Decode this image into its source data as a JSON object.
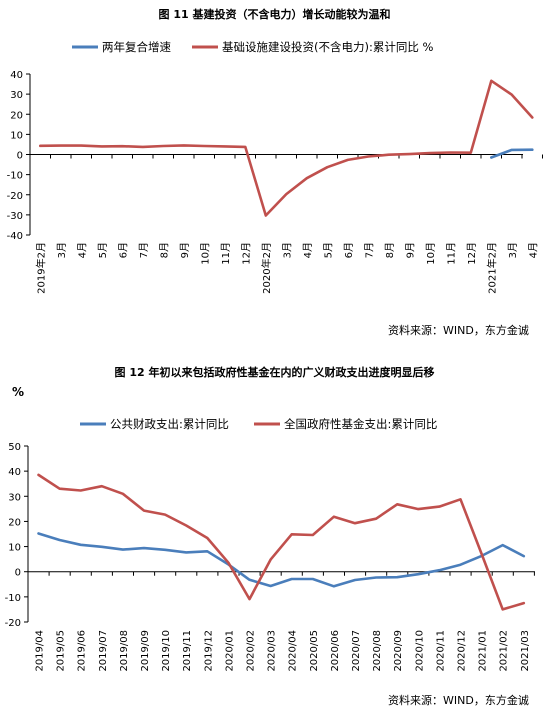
{
  "chart_data": [
    {
      "type": "line",
      "title": "图 11    基建投资（不含电力）增长动能较为温和",
      "xlabel": "",
      "ylabel": "",
      "ylim": [
        -40,
        40
      ],
      "yticks": [
        -40,
        -30,
        -20,
        -10,
        0,
        10,
        20,
        30,
        40
      ],
      "grid": false,
      "legend_position": "top",
      "categories": [
        "2019年2月",
        "3月",
        "4月",
        "5月",
        "6月",
        "7月",
        "8月",
        "9月",
        "10月",
        "11月",
        "12月",
        "2020年2月",
        "3月",
        "4月",
        "5月",
        "6月",
        "7月",
        "8月",
        "9月",
        "10月",
        "11月",
        "12月",
        "2021年2月",
        "3月",
        "4月"
      ],
      "series": [
        {
          "name": "两年复合增速",
          "color": "#4a7ebb",
          "values": [
            null,
            null,
            null,
            null,
            null,
            null,
            null,
            null,
            null,
            null,
            null,
            null,
            null,
            null,
            null,
            null,
            null,
            null,
            null,
            null,
            null,
            null,
            -1.5,
            2.3,
            2.4
          ]
        },
        {
          "name": "基础设施建设投资(不含电力):累计同比 %",
          "color": "#c0504d",
          "values": [
            4.3,
            4.4,
            4.4,
            4.0,
            4.1,
            3.8,
            4.2,
            4.5,
            4.2,
            4.0,
            3.8,
            -30.3,
            -19.7,
            -11.8,
            -6.3,
            -2.7,
            -1.0,
            -0.1,
            0.2,
            0.7,
            1.0,
            0.9,
            36.6,
            29.7,
            18.4
          ]
        }
      ],
      "source": "资料来源：WIND，东方金诚"
    },
    {
      "type": "line",
      "title": "图 12    年初以来包括政府性基金在内的广义财政支出进度明显后移",
      "xlabel": "",
      "ylabel": "%",
      "ylim": [
        -20,
        50
      ],
      "yticks": [
        -20,
        -10,
        0,
        10,
        20,
        30,
        40,
        50
      ],
      "grid": false,
      "legend_position": "top",
      "categories": [
        "2019/04",
        "2019/05",
        "2019/06",
        "2019/07",
        "2019/08",
        "2019/09",
        "2019/10",
        "2019/11",
        "2019/12",
        "2020/01",
        "2020/02",
        "2020/03",
        "2020/04",
        "2020/05",
        "2020/06",
        "2020/07",
        "2020/08",
        "2020/09",
        "2020/10",
        "2020/11",
        "2020/12",
        "2021/01",
        "2021/02",
        "2021/03"
      ],
      "series": [
        {
          "name": "公共财政支出:累计同比",
          "color": "#4a7ebb",
          "values": [
            15.2,
            12.6,
            10.7,
            9.9,
            8.8,
            9.4,
            8.7,
            7.7,
            8.1,
            2.9,
            -3.2,
            -5.7,
            -2.9,
            -2.9,
            -5.8,
            -3.3,
            -2.3,
            -2.2,
            -1.0,
            0.6,
            2.8,
            6.3,
            10.6,
            6.2
          ]
        },
        {
          "name": "全国政府性基金支出:累计同比",
          "color": "#c0504d",
          "values": [
            38.5,
            33.0,
            32.3,
            34.0,
            31.0,
            24.3,
            22.7,
            18.4,
            13.4,
            3.6,
            -10.9,
            4.8,
            14.9,
            14.6,
            21.9,
            19.3,
            21.1,
            26.8,
            24.9,
            25.9,
            28.8,
            7.1,
            -15.0,
            -12.5
          ]
        }
      ],
      "source": "资料来源：WIND，东方金诚"
    }
  ]
}
